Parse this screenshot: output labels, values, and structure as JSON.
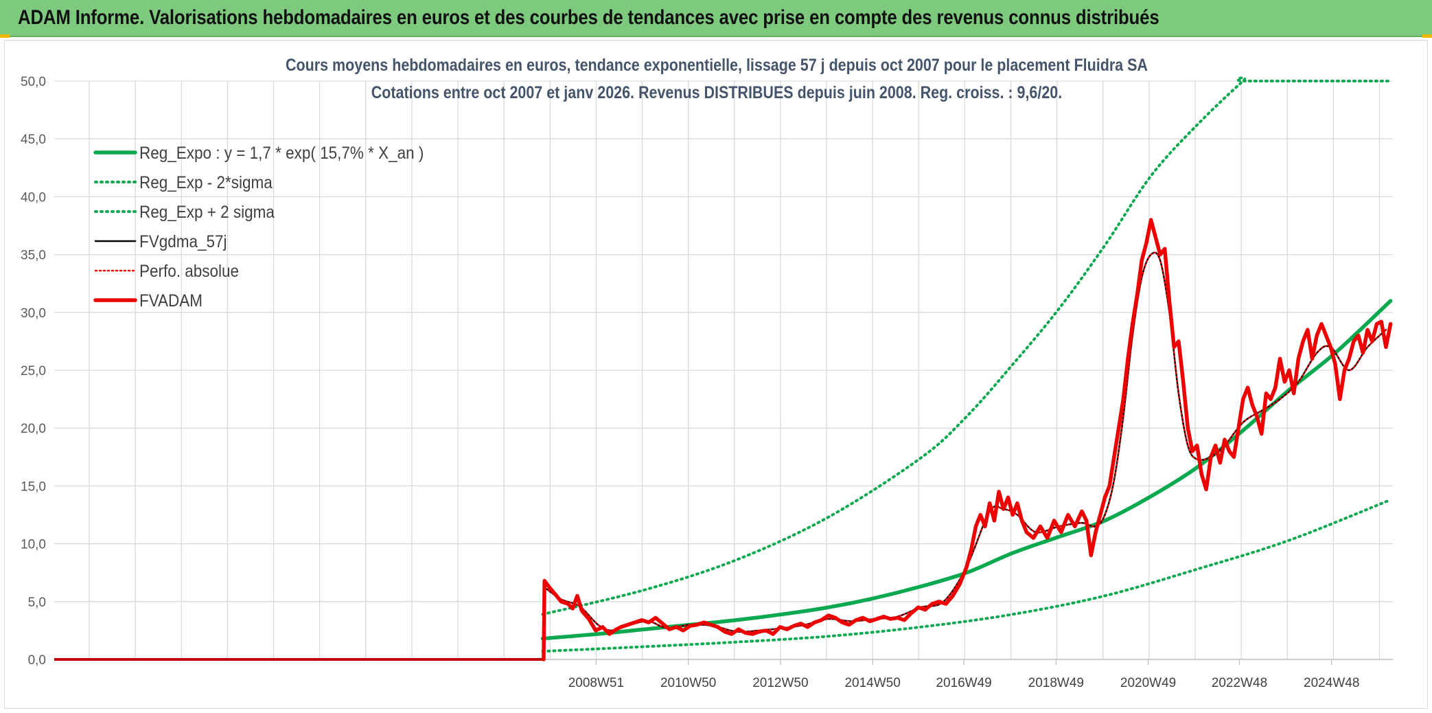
{
  "banner": {
    "title": "ADAM Informe. Valorisations hebdomadaires en euros et des courbes de tendances avec prise en compte des revenus connus distribués"
  },
  "colors": {
    "banner_bg": "#7dc97e",
    "trend_green": "#0aa84f",
    "fv_black": "#000000",
    "fvadam_red": "#ee0000",
    "title_text": "#44546a"
  },
  "chart_data": {
    "type": "line",
    "title": [
      "Cours moyens hebdomadaires en euros, tendance exponentielle, lissage 57 j depuis oct 2007 pour le placement Fluidra SA",
      "Cotations entre oct 2007 et janv 2026. Revenus DISTRIBUES depuis juin 2008. Reg. croiss. : 9,6/20."
    ],
    "ylim": [
      0,
      50
    ],
    "y_ticks": [
      "0,0",
      "5,0",
      "10,0",
      "15,0",
      "20,0",
      "25,0",
      "30,0",
      "35,0",
      "40,0",
      "45,0",
      "50,0"
    ],
    "x_tick_labels": [
      "2008W51",
      "2010W50",
      "2012W50",
      "2014W50",
      "2016W49",
      "2018W49",
      "2020W49",
      "2022W48",
      "2024W48"
    ],
    "x_tick_years": [
      2008.96,
      2010.96,
      2012.96,
      2014.96,
      2016.94,
      2018.94,
      2020.94,
      2022.92,
      2024.92
    ],
    "x_range_years": [
      1997.2,
      2026.25
    ],
    "grid": true,
    "legend_position": "top-left",
    "zero_segment": {
      "x": [
        1997.2,
        2007.82
      ],
      "y": 0
    },
    "series": [
      {
        "name": "Reg_Expo : y = 1,7 * exp( 15,7% *  X_an )",
        "style": "solid-thick",
        "color": "#0aa84f",
        "x": [
          2007.8,
          2009,
          2010,
          2011,
          2012,
          2013,
          2014,
          2015,
          2016,
          2017,
          2018,
          2019,
          2020,
          2021,
          2022,
          2023,
          2024,
          2025,
          2026.2
        ],
        "y": [
          1.8,
          2.2,
          2.6,
          3.0,
          3.4,
          3.9,
          4.5,
          5.3,
          6.3,
          7.5,
          9.2,
          10.6,
          12.0,
          14.1,
          16.6,
          19.8,
          23.3,
          26.5,
          31.0
        ]
      },
      {
        "name": "Reg_Exp - 2*sigma",
        "style": "dotted",
        "color": "#0aa84f",
        "x": [
          2007.8,
          2010,
          2012,
          2014,
          2016,
          2018,
          2020,
          2022,
          2024,
          2026.2
        ],
        "y": [
          0.7,
          1.1,
          1.5,
          2.0,
          2.8,
          3.9,
          5.5,
          7.8,
          10.3,
          13.8
        ]
      },
      {
        "name": "Reg_Exp + 2 sigma",
        "style": "dotted",
        "color": "#0aa84f",
        "x": [
          2007.8,
          2010,
          2012,
          2014,
          2016,
          2017,
          2018,
          2019,
          2020,
          2021,
          2022,
          2023,
          2023.1,
          2026.2
        ],
        "y": [
          3.9,
          6.0,
          8.6,
          12.3,
          17.4,
          21.0,
          25.5,
          30.3,
          35.8,
          41.8,
          46.2,
          50.0,
          50.0,
          50.0
        ]
      },
      {
        "name": "FVgdma_57j",
        "style": "solid",
        "color": "#000000",
        "x": [
          2007.85,
          2008.2,
          2008.6,
          2009.0,
          2009.3,
          2009.7,
          2010.1,
          2010.5,
          2011.0,
          2011.5,
          2012.0,
          2012.5,
          2013.0,
          2013.5,
          2014.0,
          2014.5,
          2015.0,
          2015.5,
          2016.0,
          2016.5,
          2017.0,
          2017.5,
          2017.8,
          2018.1,
          2018.5,
          2019.0,
          2019.5,
          2019.8,
          2020.0,
          2020.2,
          2020.4,
          2020.6,
          2020.8,
          2021.0,
          2021.2,
          2021.4,
          2021.6,
          2021.8,
          2022.0,
          2022.3,
          2022.6,
          2023.0,
          2023.4,
          2023.8,
          2024.2,
          2024.6,
          2024.9,
          2025.3,
          2025.7,
          2026.1
        ],
        "y": [
          6.2,
          5.2,
          4.6,
          3.0,
          2.5,
          3.0,
          3.3,
          2.7,
          3.0,
          2.9,
          2.4,
          2.5,
          2.7,
          3.0,
          3.5,
          3.3,
          3.5,
          3.7,
          4.5,
          5.0,
          8.0,
          12.8,
          13.0,
          12.5,
          11.0,
          11.5,
          11.8,
          11.5,
          12.5,
          15.5,
          21.0,
          28.0,
          33.0,
          35.0,
          34.5,
          30.0,
          23.0,
          18.5,
          17.3,
          17.5,
          18.5,
          20.5,
          21.5,
          22.5,
          24.0,
          26.5,
          27.0,
          25.0,
          27.0,
          28.5
        ]
      },
      {
        "name": "Perfo. absolue",
        "style": "dotted",
        "color": "#ee0000",
        "x": [
          2007.85,
          2008.2,
          2008.6,
          2009.0,
          2009.3,
          2009.7,
          2010.1,
          2010.5,
          2011.0,
          2011.5,
          2012.0,
          2012.5,
          2013.0,
          2013.5,
          2014.0,
          2014.5,
          2015.0,
          2015.5,
          2016.0,
          2016.5,
          2017.0,
          2017.5,
          2017.8,
          2018.1,
          2018.5,
          2019.0,
          2019.5,
          2019.8,
          2020.0,
          2020.2,
          2020.4,
          2020.6,
          2020.8,
          2021.0,
          2021.2,
          2021.4,
          2021.6,
          2021.8,
          2022.0,
          2022.3,
          2022.6,
          2023.0,
          2023.4,
          2023.8,
          2024.2,
          2024.6,
          2024.9,
          2025.3,
          2025.7,
          2026.1
        ],
        "y": [
          6.2,
          5.2,
          4.6,
          3.0,
          2.5,
          3.0,
          3.3,
          2.7,
          3.0,
          2.9,
          2.4,
          2.5,
          2.7,
          3.0,
          3.5,
          3.3,
          3.5,
          3.7,
          4.5,
          5.0,
          8.0,
          12.8,
          13.0,
          12.5,
          11.0,
          11.5,
          11.8,
          11.5,
          12.5,
          15.5,
          21.0,
          28.0,
          33.0,
          35.0,
          34.5,
          30.0,
          23.0,
          18.5,
          17.3,
          17.5,
          18.5,
          20.5,
          21.5,
          22.5,
          24.0,
          26.5,
          27.0,
          25.0,
          27.0,
          28.5
        ]
      },
      {
        "name": "FVADAM",
        "style": "solid-thick",
        "color": "#ee0000",
        "x": [
          2007.82,
          2007.84,
          2007.95,
          2008.1,
          2008.2,
          2008.35,
          2008.45,
          2008.55,
          2008.65,
          2008.8,
          2008.95,
          2009.1,
          2009.25,
          2009.4,
          2009.5,
          2009.65,
          2009.8,
          2009.95,
          2010.1,
          2010.25,
          2010.4,
          2010.55,
          2010.7,
          2010.85,
          2011.0,
          2011.15,
          2011.3,
          2011.45,
          2011.6,
          2011.75,
          2011.9,
          2012.05,
          2012.2,
          2012.35,
          2012.5,
          2012.65,
          2012.8,
          2012.95,
          2013.1,
          2013.25,
          2013.4,
          2013.55,
          2013.7,
          2013.85,
          2014.0,
          2014.15,
          2014.3,
          2014.45,
          2014.6,
          2014.75,
          2014.9,
          2015.05,
          2015.2,
          2015.35,
          2015.5,
          2015.65,
          2015.8,
          2015.95,
          2016.1,
          2016.25,
          2016.4,
          2016.55,
          2016.7,
          2016.85,
          2017.0,
          2017.1,
          2017.2,
          2017.3,
          2017.4,
          2017.5,
          2017.6,
          2017.7,
          2017.8,
          2017.9,
          2018.0,
          2018.1,
          2018.2,
          2018.3,
          2018.45,
          2018.6,
          2018.75,
          2018.9,
          2019.05,
          2019.2,
          2019.35,
          2019.5,
          2019.6,
          2019.7,
          2019.8,
          2019.9,
          2020.0,
          2020.1,
          2020.2,
          2020.3,
          2020.4,
          2020.5,
          2020.6,
          2020.7,
          2020.8,
          2020.9,
          2021.0,
          2021.1,
          2021.2,
          2021.3,
          2021.4,
          2021.5,
          2021.6,
          2021.7,
          2021.8,
          2021.9,
          2022.0,
          2022.1,
          2022.2,
          2022.3,
          2022.4,
          2022.5,
          2022.6,
          2022.7,
          2022.8,
          2022.9,
          2023.0,
          2023.1,
          2023.2,
          2023.3,
          2023.4,
          2023.5,
          2023.6,
          2023.7,
          2023.8,
          2023.9,
          2024.0,
          2024.1,
          2024.2,
          2024.3,
          2024.4,
          2024.5,
          2024.6,
          2024.7,
          2024.8,
          2024.9,
          2025.0,
          2025.1,
          2025.2,
          2025.3,
          2025.4,
          2025.5,
          2025.6,
          2025.7,
          2025.8,
          2025.9,
          2026.0,
          2026.1,
          2026.2
        ],
        "y": [
          0.0,
          6.8,
          6.2,
          5.5,
          5.0,
          4.8,
          4.4,
          5.5,
          4.2,
          3.5,
          2.5,
          2.8,
          2.2,
          2.6,
          2.8,
          3.0,
          3.2,
          3.4,
          3.2,
          3.6,
          3.1,
          2.6,
          2.8,
          2.5,
          2.9,
          3.0,
          3.2,
          3.0,
          2.8,
          2.4,
          2.2,
          2.6,
          2.3,
          2.2,
          2.4,
          2.5,
          2.2,
          2.8,
          2.6,
          2.9,
          3.1,
          2.8,
          3.2,
          3.4,
          3.8,
          3.6,
          3.2,
          3.0,
          3.4,
          3.6,
          3.3,
          3.5,
          3.7,
          3.5,
          3.6,
          3.4,
          4.0,
          4.5,
          4.3,
          4.8,
          5.0,
          4.8,
          5.5,
          6.5,
          8.0,
          9.5,
          11.5,
          12.5,
          11.5,
          13.5,
          12.0,
          14.5,
          13.0,
          14.0,
          12.5,
          13.5,
          12.0,
          11.0,
          10.5,
          11.5,
          10.5,
          12.0,
          11.0,
          12.5,
          11.5,
          12.8,
          12.0,
          9.0,
          11.0,
          12.5,
          14.0,
          15.0,
          17.5,
          20.0,
          22.5,
          26.0,
          29.0,
          31.5,
          34.5,
          36.0,
          38.0,
          36.5,
          35.0,
          35.5,
          31.0,
          27.0,
          27.5,
          24.0,
          20.0,
          18.0,
          18.5,
          16.0,
          14.7,
          17.5,
          18.5,
          17.0,
          19.0,
          18.0,
          17.5,
          20.0,
          22.5,
          23.5,
          22.0,
          21.0,
          19.5,
          23.0,
          22.5,
          23.5,
          26.0,
          24.0,
          25.0,
          23.0,
          26.0,
          27.5,
          28.5,
          26.0,
          28.0,
          29.0,
          28.0,
          27.0,
          25.5,
          22.5,
          25.0,
          26.0,
          27.5,
          28.0,
          26.5,
          28.5,
          27.5,
          29.0,
          29.2,
          27.0,
          29.0
        ]
      }
    ]
  }
}
